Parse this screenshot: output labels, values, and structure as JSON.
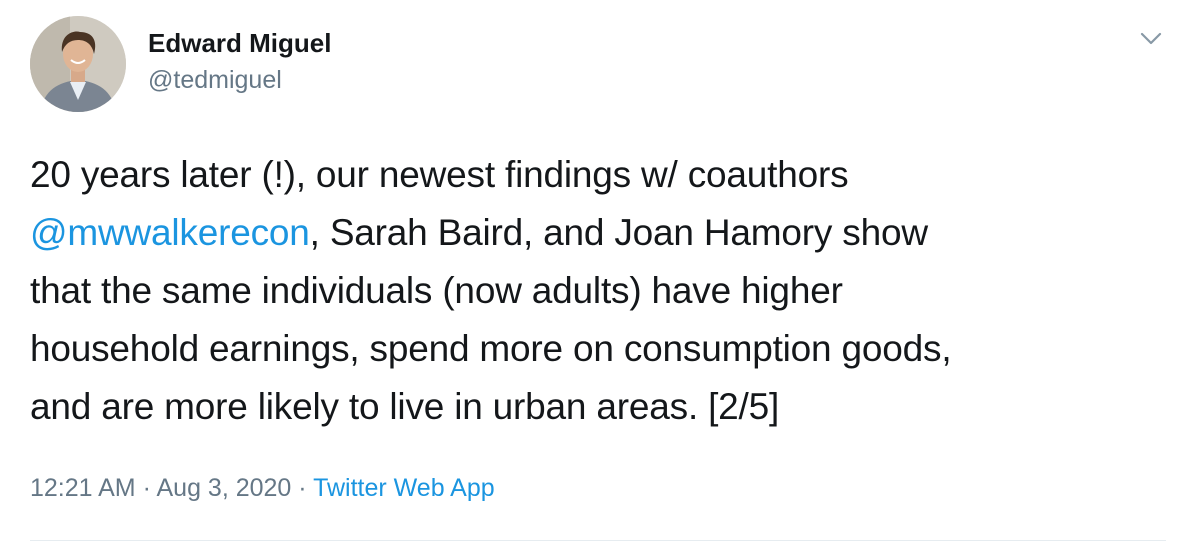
{
  "author": {
    "name": "Edward Miguel",
    "handle": "@tedmiguel",
    "avatar_icon": "person-avatar"
  },
  "header": {
    "menu_icon": "chevron-down-icon"
  },
  "tweet": {
    "line1": "20 years later (!), our newest findings w/ coauthors",
    "mention": "@mwwalkerecon",
    "line2_rest": ", Sarah Baird, and Joan Hamory show",
    "line3": "that the same individuals (now adults) have higher",
    "line4": "household earnings, spend more on consumption goods,",
    "line5": "and are more likely to live in urban areas. [2/5]"
  },
  "meta": {
    "time": "12:21 AM",
    "separator": " · ",
    "date": "Aug 3, 2020",
    "source": "Twitter Web App"
  },
  "colors": {
    "text": "#14171a",
    "secondary": "#657786",
    "link": "#1b95e0",
    "divider": "#e6ecf0"
  }
}
